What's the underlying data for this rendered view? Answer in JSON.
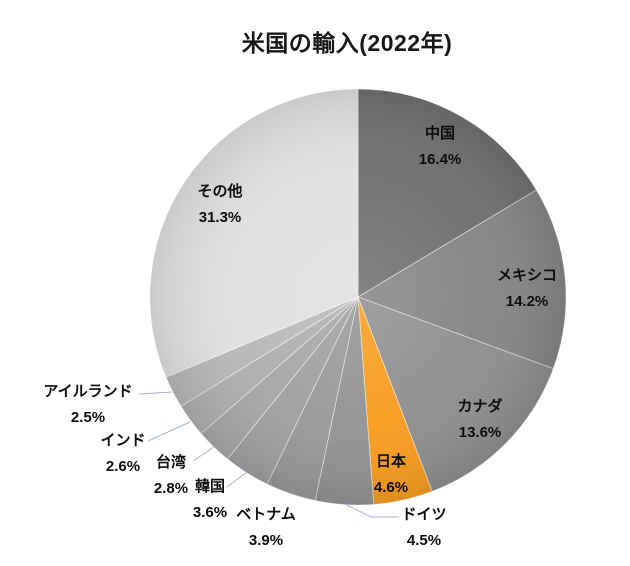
{
  "chart_data": {
    "type": "pie",
    "title": "米国の輸入(2022年)",
    "unit": "%",
    "start_angle_deg": 0,
    "direction": "clockwise",
    "legend": "none",
    "background_color": "#ffffff",
    "label_color": "#0d0d0d",
    "leader_line_color": "#a7b4cf",
    "slice_border_color": "#ffffff",
    "highlight_color": "#f89d20",
    "slices": [
      {
        "name": "中国",
        "value": 16.4,
        "pct_label": "16.4%",
        "color": "#707070",
        "label_placement": "inside"
      },
      {
        "name": "メキシコ",
        "value": 14.2,
        "pct_label": "14.2%",
        "color": "#868686",
        "label_placement": "inside"
      },
      {
        "name": "カナダ",
        "value": 13.6,
        "pct_label": "13.6%",
        "color": "#8f8f8f",
        "label_placement": "inside"
      },
      {
        "name": "日本",
        "value": 4.6,
        "pct_label": "4.6%",
        "color": "#f89d20",
        "label_placement": "inside"
      },
      {
        "name": "ドイツ",
        "value": 4.5,
        "pct_label": "4.5%",
        "color": "#939393",
        "label_placement": "outside"
      },
      {
        "name": "ベトナム",
        "value": 3.9,
        "pct_label": "3.9%",
        "color": "#999999",
        "label_placement": "outside"
      },
      {
        "name": "韓国",
        "value": 3.6,
        "pct_label": "3.6%",
        "color": "#a0a0a0",
        "label_placement": "outside"
      },
      {
        "name": "台湾",
        "value": 2.8,
        "pct_label": "2.8%",
        "color": "#a7a7a7",
        "label_placement": "outside"
      },
      {
        "name": "インド",
        "value": 2.6,
        "pct_label": "2.6%",
        "color": "#afafaf",
        "label_placement": "outside"
      },
      {
        "name": "アイルランド",
        "value": 2.5,
        "pct_label": "2.5%",
        "color": "#b8b8b8",
        "label_placement": "outside"
      },
      {
        "name": "その他",
        "value": 31.3,
        "pct_label": "31.3%",
        "color": "#e0e0e0",
        "label_placement": "inside"
      }
    ]
  }
}
